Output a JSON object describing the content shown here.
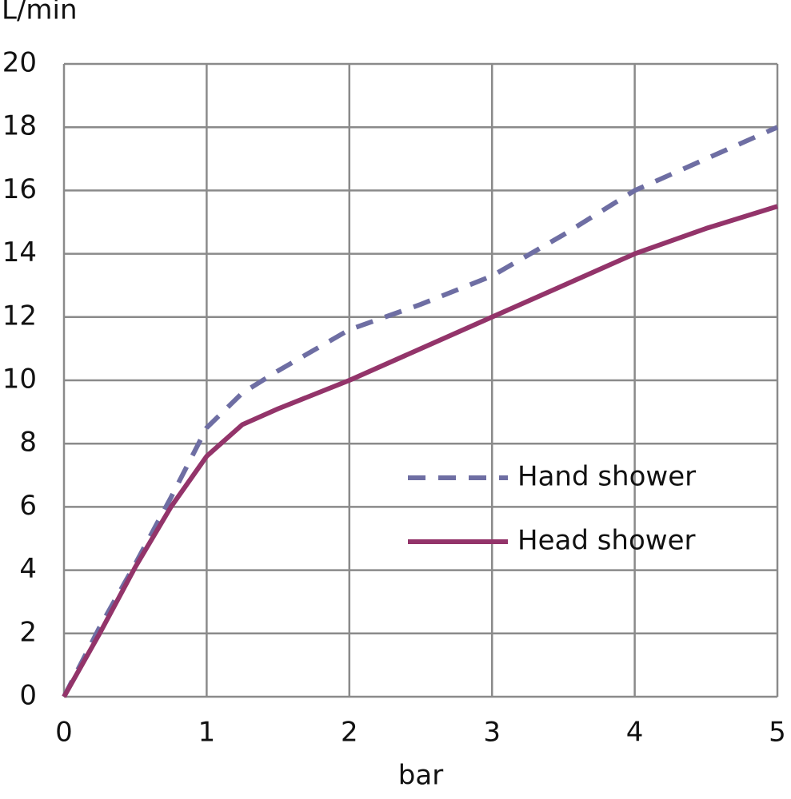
{
  "chart_data": {
    "type": "line",
    "y_label": "L/min",
    "x_label": "bar",
    "xlim": [
      0,
      5
    ],
    "xticks": [
      0,
      1,
      2,
      3,
      4,
      5
    ],
    "ylim": [
      0,
      20
    ],
    "yticks": [
      0,
      2,
      4,
      6,
      8,
      10,
      12,
      14,
      16,
      18,
      20
    ],
    "grid": true,
    "legend": "right",
    "x": [
      0,
      0.25,
      0.5,
      0.75,
      1,
      1.25,
      1.5,
      2,
      2.5,
      3,
      3.5,
      4,
      4.5,
      5
    ],
    "series": [
      {
        "name": "Hand shower",
        "color": "#6e6ea3",
        "style": "dashed",
        "values": [
          0,
          2.2,
          4.2,
          6.3,
          8.5,
          9.6,
          10.3,
          11.6,
          12.4,
          13.3,
          14.6,
          16,
          17,
          18
        ]
      },
      {
        "name": "Head shower",
        "color": "#93346a",
        "style": "solid",
        "values": [
          0,
          2,
          4.1,
          6,
          7.6,
          8.6,
          9.1,
          10,
          11,
          12,
          13,
          14,
          14.8,
          15.5
        ]
      }
    ]
  }
}
